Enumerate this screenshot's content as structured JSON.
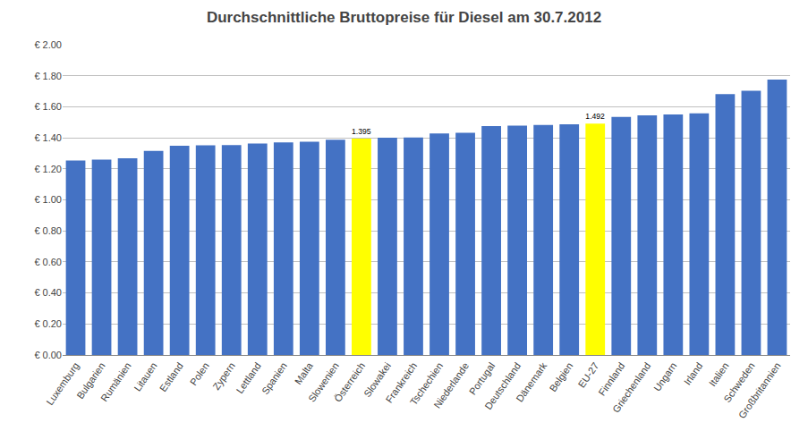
{
  "chart_data": {
    "type": "bar",
    "title": "Durchschnittliche Bruttopreise für Diesel am 30.7.2012",
    "categories": [
      "Luxemburg",
      "Bulgarien",
      "Rumänien",
      "Litauen",
      "Estland",
      "Polen",
      "Zypern",
      "Lettland",
      "Spanien",
      "Malta",
      "Slowenien",
      "Österreich",
      "Slowakei",
      "Frankreich",
      "Tschechien",
      "Niederlande",
      "Portugal",
      "Deutschland",
      "Dänemark",
      "Belgien",
      "EU-27",
      "Finnland",
      "Griechenland",
      "Ungarn",
      "Irland",
      "Italien",
      "Schweden",
      "Großbritannien"
    ],
    "values": [
      1.254,
      1.26,
      1.268,
      1.315,
      1.348,
      1.352,
      1.353,
      1.363,
      1.37,
      1.375,
      1.388,
      1.395,
      1.4,
      1.402,
      1.428,
      1.432,
      1.475,
      1.478,
      1.482,
      1.487,
      1.492,
      1.535,
      1.545,
      1.55,
      1.557,
      1.682,
      1.703,
      1.775
    ],
    "value_labels": [
      null,
      null,
      null,
      null,
      null,
      null,
      null,
      null,
      null,
      null,
      null,
      "1.395",
      null,
      null,
      null,
      null,
      null,
      null,
      null,
      null,
      "1.492",
      null,
      null,
      null,
      null,
      null,
      null,
      null
    ],
    "data_labels": true,
    "colors": [
      "#4472C4",
      "#4472C4",
      "#4472C4",
      "#4472C4",
      "#4472C4",
      "#4472C4",
      "#4472C4",
      "#4472C4",
      "#4472C4",
      "#4472C4",
      "#4472C4",
      "#FFFF00",
      "#4472C4",
      "#4472C4",
      "#4472C4",
      "#4472C4",
      "#4472C4",
      "#4472C4",
      "#4472C4",
      "#4472C4",
      "#FFFF00",
      "#4472C4",
      "#4472C4",
      "#4472C4",
      "#4472C4",
      "#4472C4",
      "#4472C4",
      "#4472C4"
    ],
    "ylim": [
      0.0,
      2.0
    ],
    "yticks": [
      {
        "value": 0.0,
        "label": "€ 0.00"
      },
      {
        "value": 0.2,
        "label": "€ 0.20"
      },
      {
        "value": 0.4,
        "label": "€ 0.40"
      },
      {
        "value": 0.6,
        "label": "€ 0.60"
      },
      {
        "value": 0.8,
        "label": "€ 0.80"
      },
      {
        "value": 1.0,
        "label": "€ 1.00"
      },
      {
        "value": 1.2,
        "label": "€ 1.20"
      },
      {
        "value": 1.4,
        "label": "€ 1.40"
      },
      {
        "value": 1.6,
        "label": "€ 1.60"
      },
      {
        "value": 1.8,
        "label": "€ 1.80"
      },
      {
        "value": 2.0,
        "label": "€ 2.00"
      }
    ],
    "grid": true
  }
}
